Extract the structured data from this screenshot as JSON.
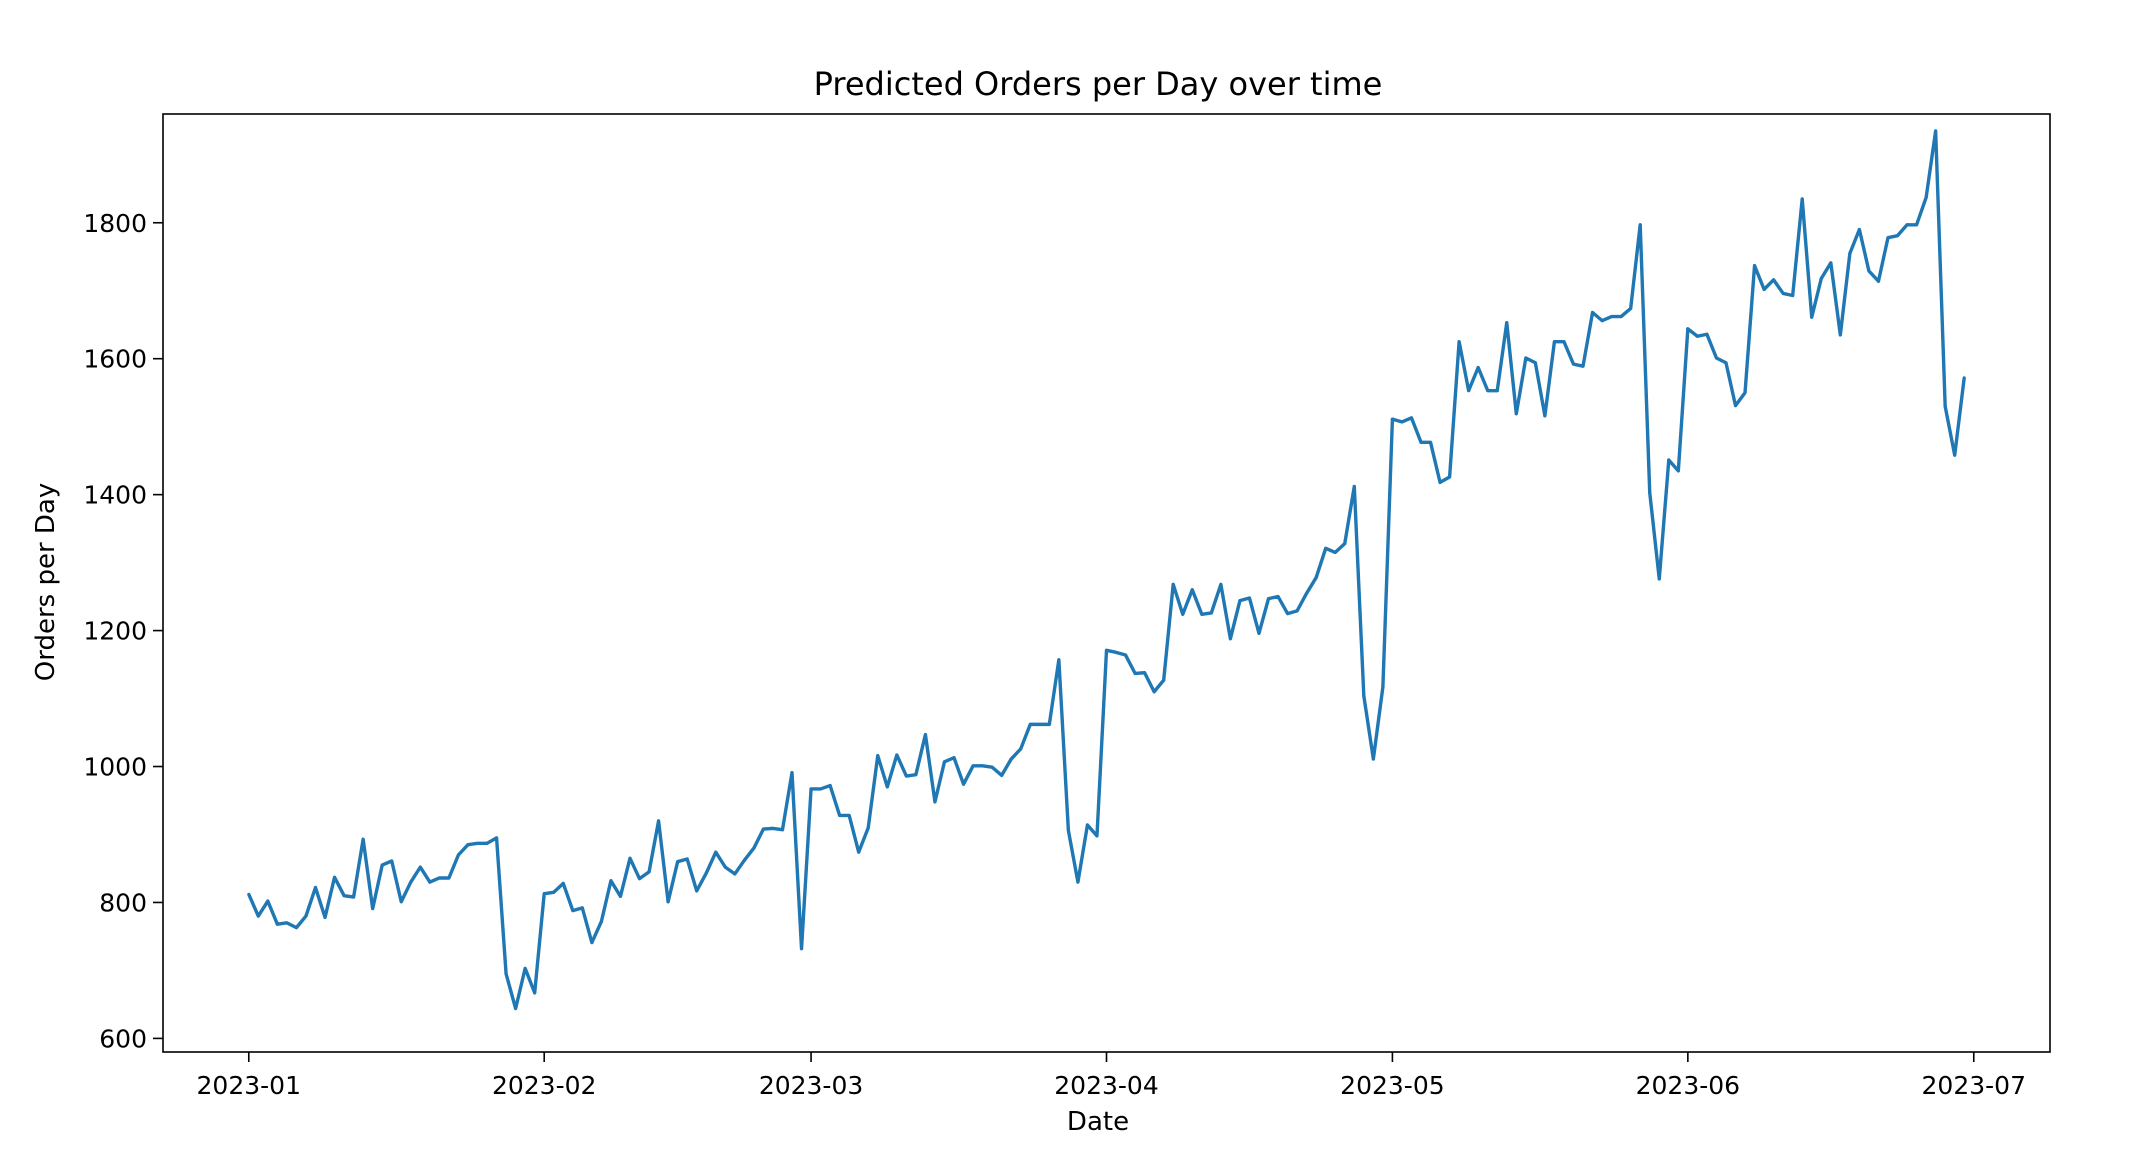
{
  "chart_data": {
    "type": "line",
    "title": "Predicted Orders per Day over time",
    "xlabel": "Date",
    "ylabel": "Orders per Day",
    "xlim": [
      "2022-12-23",
      "2023-07-09"
    ],
    "ylim": [
      580,
      1960
    ],
    "grid": false,
    "line_color": "#1f77b4",
    "x_ticks": [
      {
        "date": "2023-01-01",
        "label": "2023-01"
      },
      {
        "date": "2023-02-01",
        "label": "2023-02"
      },
      {
        "date": "2023-03-01",
        "label": "2023-03"
      },
      {
        "date": "2023-04-01",
        "label": "2023-04"
      },
      {
        "date": "2023-05-01",
        "label": "2023-05"
      },
      {
        "date": "2023-06-01",
        "label": "2023-06"
      },
      {
        "date": "2023-07-01",
        "label": "2023-07"
      }
    ],
    "y_ticks": [
      600,
      800,
      1000,
      1200,
      1400,
      1600,
      1800
    ],
    "series": [
      {
        "x_start": "2023-01-01",
        "x_end": "2023-06-30",
        "frequency": "daily",
        "values": [
          812,
          780,
          802,
          768,
          770,
          763,
          780,
          822,
          778,
          837,
          810,
          808,
          893,
          791,
          855,
          861,
          801,
          830,
          852,
          830,
          836,
          836,
          870,
          885,
          887,
          887,
          895,
          695,
          644,
          703,
          667,
          813,
          815,
          828,
          788,
          792,
          741,
          772,
          832,
          809,
          865,
          835,
          845,
          920,
          801,
          860,
          864,
          817,
          843,
          874,
          852,
          842,
          862,
          880,
          908,
          909,
          907,
          991,
          732,
          967,
          967,
          972,
          928,
          928,
          874,
          910,
          1016,
          970,
          1017,
          986,
          988,
          1047,
          948,
          1007,
          1013,
          974,
          1001,
          1001,
          999,
          987,
          1011,
          1026,
          1062,
          1062,
          1062,
          1157,
          906,
          830,
          914,
          898,
          1171,
          1168,
          1164,
          1137,
          1138,
          1110,
          1127,
          1268,
          1224,
          1260,
          1224,
          1226,
          1268,
          1188,
          1244,
          1248,
          1196,
          1247,
          1250,
          1225,
          1229,
          1255,
          1278,
          1321,
          1315,
          1328,
          1412,
          1104,
          1011,
          1117,
          1511,
          1507,
          1513,
          1477,
          1477,
          1418,
          1426,
          1625,
          1553,
          1587,
          1553,
          1553,
          1653,
          1519,
          1601,
          1594,
          1516,
          1625,
          1625,
          1592,
          1589,
          1668,
          1656,
          1662,
          1662,
          1674,
          1797,
          1403,
          1276,
          1451,
          1435,
          1644,
          1633,
          1636,
          1601,
          1594,
          1531,
          1550,
          1737,
          1702,
          1716,
          1696,
          1693,
          1835,
          1661,
          1718,
          1741,
          1635,
          1755,
          1790,
          1729,
          1714,
          1778,
          1781,
          1797,
          1797,
          1837,
          1935,
          1530,
          1458,
          1572
        ]
      }
    ]
  }
}
